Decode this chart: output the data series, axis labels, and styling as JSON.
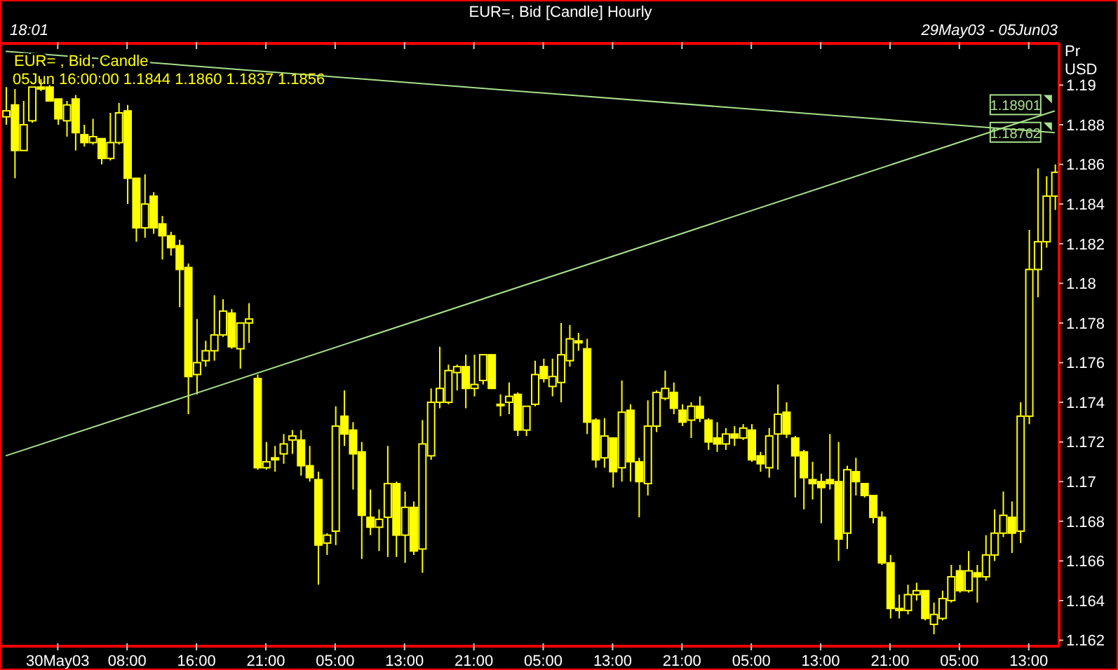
{
  "chart_data": {
    "type": "candlestick",
    "title": "EUR=, Bid [Candle] Hourly",
    "ylabel": "Pr USD",
    "annotations": [
      "18:01",
      "29May03 - 05Jun03",
      "05Jun 16:00:00 1.1844 1.1860 1.1837 1.1856",
      {
        "text": "1.18901",
        "y": 1.18901
      },
      {
        "text": "1.18762",
        "y": 1.18762
      }
    ],
    "categories": [
      null,
      null,
      null,
      null,
      null,
      null,
      "30May03",
      null,
      null,
      null,
      null,
      null,
      null,
      null,
      "08:00",
      null,
      null,
      null,
      null,
      null,
      null,
      null,
      "16:00",
      null,
      null,
      null,
      null,
      null,
      null,
      null,
      "21:00",
      null,
      null,
      null,
      null,
      null,
      null,
      null,
      "05:00",
      null,
      null,
      null,
      null,
      null,
      null,
      null,
      "13:00",
      null,
      null,
      null,
      null,
      null,
      null,
      null,
      "21:00",
      null,
      null,
      null,
      null,
      null,
      null,
      null,
      "05:00",
      null,
      null,
      null,
      null,
      null,
      null,
      null,
      "13:00",
      null,
      null,
      null,
      null,
      null,
      null,
      null,
      "21:00",
      null,
      null,
      null,
      null,
      null,
      null,
      null,
      "05:00",
      null,
      null,
      null,
      null,
      null,
      null,
      null,
      "13:00",
      null,
      null,
      null,
      null,
      null,
      null,
      null,
      "21:00",
      null,
      null,
      null,
      null,
      null,
      null,
      null,
      "05:00",
      null,
      null,
      null,
      null,
      null,
      null,
      null,
      "13:00",
      null,
      null,
      null
    ],
    "ylim": [
      1.1617,
      1.1921
    ],
    "yticks": [
      1.162,
      1.164,
      1.166,
      1.168,
      1.17,
      1.172,
      1.174,
      1.176,
      1.178,
      1.18,
      1.182,
      1.184,
      1.186,
      1.188,
      1.19
    ],
    "series": [
      {
        "type": "line",
        "color": "#a8e08c",
        "values": [
          1.1917,
          null,
          null,
          null,
          null,
          null,
          null,
          null,
          null,
          null,
          null,
          null,
          null,
          null,
          null,
          null,
          null,
          null,
          null,
          null,
          null,
          null,
          null,
          null,
          null,
          null,
          null,
          null,
          null,
          null,
          null,
          null,
          null,
          null,
          null,
          null,
          null,
          null,
          null,
          null,
          null,
          null,
          null,
          null,
          null,
          null,
          null,
          null,
          null,
          null,
          null,
          null,
          null,
          null,
          null,
          null,
          null,
          null,
          null,
          null,
          null,
          null,
          null,
          null,
          null,
          null,
          null,
          null,
          null,
          null,
          null,
          null,
          null,
          null,
          null,
          null,
          null,
          null,
          null,
          null,
          null,
          null,
          null,
          null,
          null,
          null,
          null,
          null,
          null,
          null,
          null,
          null,
          null,
          null,
          null,
          null,
          null,
          null,
          null,
          null,
          null,
          null,
          null,
          null,
          null,
          null,
          null,
          null,
          null,
          null,
          null,
          null,
          null,
          null,
          null,
          null,
          null,
          null,
          null,
          null,
          null,
          1.1876
        ]
      },
      {
        "type": "line",
        "color": "#a8e08c",
        "values": [
          1.1713,
          null,
          null,
          null,
          null,
          null,
          null,
          null,
          null,
          null,
          null,
          null,
          null,
          null,
          null,
          null,
          null,
          null,
          null,
          null,
          null,
          null,
          null,
          null,
          null,
          null,
          null,
          null,
          null,
          null,
          null,
          null,
          null,
          null,
          null,
          null,
          null,
          null,
          null,
          null,
          null,
          null,
          null,
          null,
          null,
          null,
          null,
          null,
          null,
          null,
          null,
          null,
          null,
          null,
          null,
          null,
          null,
          null,
          null,
          null,
          null,
          null,
          null,
          null,
          null,
          null,
          null,
          null,
          null,
          null,
          null,
          null,
          null,
          null,
          null,
          null,
          null,
          null,
          null,
          null,
          null,
          null,
          null,
          null,
          null,
          null,
          null,
          null,
          null,
          null,
          null,
          null,
          null,
          null,
          null,
          null,
          null,
          null,
          null,
          null,
          null,
          null,
          null,
          null,
          null,
          null,
          null,
          null,
          null,
          null,
          null,
          null,
          null,
          null,
          null,
          null,
          null,
          null,
          null,
          null,
          null,
          1.1887
        ]
      },
      {
        "name": "EUR= , Bid, Candle",
        "color": "#ffff00",
        "ohlc": [
          [
            1.1884,
            1.1899,
            1.188,
            1.1887
          ],
          [
            1.189,
            1.1898,
            1.1853,
            1.1867
          ],
          [
            1.1867,
            1.1892,
            1.1867,
            1.188
          ],
          [
            1.1882,
            1.1899,
            1.1881,
            1.1899
          ],
          [
            1.1899,
            1.1903,
            1.1897,
            1.1898
          ],
          [
            1.1899,
            1.19,
            1.1892,
            1.1892
          ],
          [
            1.1893,
            1.1893,
            1.188,
            1.1883
          ],
          [
            1.1882,
            1.1892,
            1.1874,
            1.189
          ],
          [
            1.1893,
            1.1895,
            1.1867,
            1.1876
          ],
          [
            1.1875,
            1.188,
            1.1869,
            1.1871
          ],
          [
            1.1871,
            1.1883,
            1.187,
            1.1874
          ],
          [
            1.1873,
            1.1873,
            1.186,
            1.1863
          ],
          [
            1.1863,
            1.1886,
            1.1862,
            1.1871
          ],
          [
            1.1871,
            1.1891,
            1.187,
            1.1886
          ],
          [
            1.1887,
            1.189,
            1.184,
            1.1853
          ],
          [
            1.1853,
            1.1853,
            1.1821,
            1.1828
          ],
          [
            1.1828,
            1.1855,
            1.1823,
            1.184
          ],
          [
            1.1844,
            1.1846,
            1.1825,
            1.1828
          ],
          [
            1.183,
            1.1834,
            1.1812,
            1.1824
          ],
          [
            1.1824,
            1.1826,
            1.1814,
            1.1818
          ],
          [
            1.1819,
            1.1822,
            1.1788,
            1.1807
          ],
          [
            1.1808,
            1.181,
            1.1734,
            1.1753
          ],
          [
            1.1754,
            1.1782,
            1.1744,
            1.176
          ],
          [
            1.1761,
            1.1771,
            1.1758,
            1.1766
          ],
          [
            1.1766,
            1.1794,
            1.1761,
            1.1774
          ],
          [
            1.1774,
            1.1792,
            1.1773,
            1.1786
          ],
          [
            1.1785,
            1.1787,
            1.1767,
            1.1768
          ],
          [
            1.1767,
            1.178,
            1.1757,
            1.178
          ],
          [
            1.178,
            1.179,
            1.177,
            1.1782
          ],
          [
            1.1752,
            1.1754,
            1.1706,
            1.1707
          ],
          [
            1.1707,
            1.172,
            1.1706,
            1.171
          ],
          [
            1.1712,
            1.1718,
            1.1705,
            1.1711
          ],
          [
            1.1714,
            1.1724,
            1.1709,
            1.1719
          ],
          [
            1.1721,
            1.1726,
            1.1714,
            1.1723
          ],
          [
            1.1721,
            1.1726,
            1.1703,
            1.1708
          ],
          [
            1.1708,
            1.1718,
            1.17,
            1.1702
          ],
          [
            1.1701,
            1.1705,
            1.1648,
            1.1668
          ],
          [
            1.1669,
            1.1674,
            1.1663,
            1.1673
          ],
          [
            1.1675,
            1.1738,
            1.1668,
            1.1728
          ],
          [
            1.1733,
            1.1746,
            1.1718,
            1.1724
          ],
          [
            1.1726,
            1.173,
            1.1696,
            1.1714
          ],
          [
            1.1715,
            1.172,
            1.1661,
            1.1683
          ],
          [
            1.1682,
            1.1696,
            1.1673,
            1.1677
          ],
          [
            1.1677,
            1.1686,
            1.1665,
            1.1681
          ],
          [
            1.1682,
            1.1718,
            1.1662,
            1.1699
          ],
          [
            1.1699,
            1.17,
            1.1662,
            1.1673
          ],
          [
            1.1673,
            1.1695,
            1.1659,
            1.1687
          ],
          [
            1.1687,
            1.169,
            1.1663,
            1.1665
          ],
          [
            1.1666,
            1.1731,
            1.1654,
            1.1719
          ],
          [
            1.1713,
            1.1747,
            1.1711,
            1.174
          ],
          [
            1.174,
            1.1768,
            1.1737,
            1.1747
          ],
          [
            1.174,
            1.1759,
            1.1739,
            1.1756
          ],
          [
            1.1755,
            1.1759,
            1.1746,
            1.1758
          ],
          [
            1.1758,
            1.1764,
            1.1737,
            1.1747
          ],
          [
            1.1747,
            1.1764,
            1.1743,
            1.1749
          ],
          [
            1.1751,
            1.1764,
            1.1749,
            1.1764
          ],
          [
            1.1764,
            1.1764,
            1.1747,
            1.1747
          ],
          [
            1.1739,
            1.1744,
            1.1733,
            1.1739
          ],
          [
            1.174,
            1.175,
            1.1734,
            1.1743
          ],
          [
            1.1744,
            1.1745,
            1.1723,
            1.1726
          ],
          [
            1.1726,
            1.1738,
            1.1723,
            1.1738
          ],
          [
            1.1739,
            1.1761,
            1.1738,
            1.1754
          ],
          [
            1.1758,
            1.1762,
            1.175,
            1.1752
          ],
          [
            1.1748,
            1.1762,
            1.1743,
            1.1753
          ],
          [
            1.175,
            1.178,
            1.174,
            1.1764
          ],
          [
            1.1761,
            1.1779,
            1.1758,
            1.1772
          ],
          [
            1.1771,
            1.1775,
            1.1766,
            1.177
          ],
          [
            1.1767,
            1.1772,
            1.1724,
            1.173
          ],
          [
            1.1731,
            1.1732,
            1.1707,
            1.1711
          ],
          [
            1.1712,
            1.1732,
            1.1707,
            1.1723
          ],
          [
            1.1722,
            1.1722,
            1.1697,
            1.1705
          ],
          [
            1.1707,
            1.1751,
            1.17,
            1.1735
          ],
          [
            1.1736,
            1.1739,
            1.17,
            1.171
          ],
          [
            1.171,
            1.1712,
            1.1682,
            1.17
          ],
          [
            1.1699,
            1.1741,
            1.1693,
            1.1728
          ],
          [
            1.1728,
            1.1746,
            1.1725,
            1.1745
          ],
          [
            1.1742,
            1.1756,
            1.1741,
            1.1747
          ],
          [
            1.1745,
            1.175,
            1.1734,
            1.1737
          ],
          [
            1.1736,
            1.1739,
            1.1728,
            1.173
          ],
          [
            1.1731,
            1.174,
            1.1722,
            1.1738
          ],
          [
            1.1738,
            1.1743,
            1.173,
            1.1732
          ],
          [
            1.1731,
            1.1732,
            1.1716,
            1.172
          ],
          [
            1.1722,
            1.173,
            1.1715,
            1.1719
          ],
          [
            1.1719,
            1.1727,
            1.1716,
            1.1724
          ],
          [
            1.1724,
            1.1728,
            1.1718,
            1.1722
          ],
          [
            1.1722,
            1.1729,
            1.1721,
            1.1727
          ],
          [
            1.1726,
            1.1729,
            1.171,
            1.1711
          ],
          [
            1.1713,
            1.1715,
            1.1705,
            1.1709
          ],
          [
            1.1707,
            1.1727,
            1.1702,
            1.1723
          ],
          [
            1.1724,
            1.1749,
            1.1706,
            1.1734
          ],
          [
            1.1735,
            1.174,
            1.1722,
            1.1724
          ],
          [
            1.1722,
            1.1723,
            1.1692,
            1.1713
          ],
          [
            1.1715,
            1.1716,
            1.1686,
            1.1702
          ],
          [
            1.1701,
            1.171,
            1.1691,
            1.1699
          ],
          [
            1.17,
            1.1704,
            1.1679,
            1.1697
          ],
          [
            1.1701,
            1.1724,
            1.1696,
            1.1699
          ],
          [
            1.17,
            1.172,
            1.166,
            1.1671
          ],
          [
            1.1674,
            1.1708,
            1.1666,
            1.1706
          ],
          [
            1.1705,
            1.1712,
            1.1693,
            1.17
          ],
          [
            1.1699,
            1.1699,
            1.1692,
            1.1693
          ],
          [
            1.1693,
            1.1693,
            1.1679,
            1.1682
          ],
          [
            1.1682,
            1.1685,
            1.1658,
            1.1659
          ],
          [
            1.1659,
            1.1663,
            1.1631,
            1.1636
          ],
          [
            1.1636,
            1.1643,
            1.1631,
            1.1635
          ],
          [
            1.1635,
            1.1648,
            1.1633,
            1.1643
          ],
          [
            1.1643,
            1.1649,
            1.164,
            1.1645
          ],
          [
            1.1645,
            1.1645,
            1.163,
            1.1631
          ],
          [
            1.1628,
            1.1639,
            1.1623,
            1.1633
          ],
          [
            1.1631,
            1.1645,
            1.163,
            1.1641
          ],
          [
            1.164,
            1.1658,
            1.1639,
            1.1652
          ],
          [
            1.1655,
            1.1658,
            1.1644,
            1.1645
          ],
          [
            1.1645,
            1.1665,
            1.1644,
            1.1655
          ],
          [
            1.1654,
            1.1658,
            1.1639,
            1.1652
          ],
          [
            1.1652,
            1.1673,
            1.165,
            1.1663
          ],
          [
            1.1663,
            1.1686,
            1.166,
            1.1674
          ],
          [
            1.1674,
            1.1695,
            1.1672,
            1.1683
          ],
          [
            1.1682,
            1.169,
            1.1664,
            1.1674
          ],
          [
            1.1675,
            1.174,
            1.1669,
            1.1733
          ],
          [
            1.1733,
            1.1827,
            1.1729,
            1.1807
          ],
          [
            1.1807,
            1.1858,
            1.1793,
            1.1821
          ],
          [
            1.1821,
            1.1854,
            1.1818,
            1.1844
          ],
          [
            1.1844,
            1.186,
            1.1837,
            1.1856
          ]
        ]
      }
    ]
  }
}
